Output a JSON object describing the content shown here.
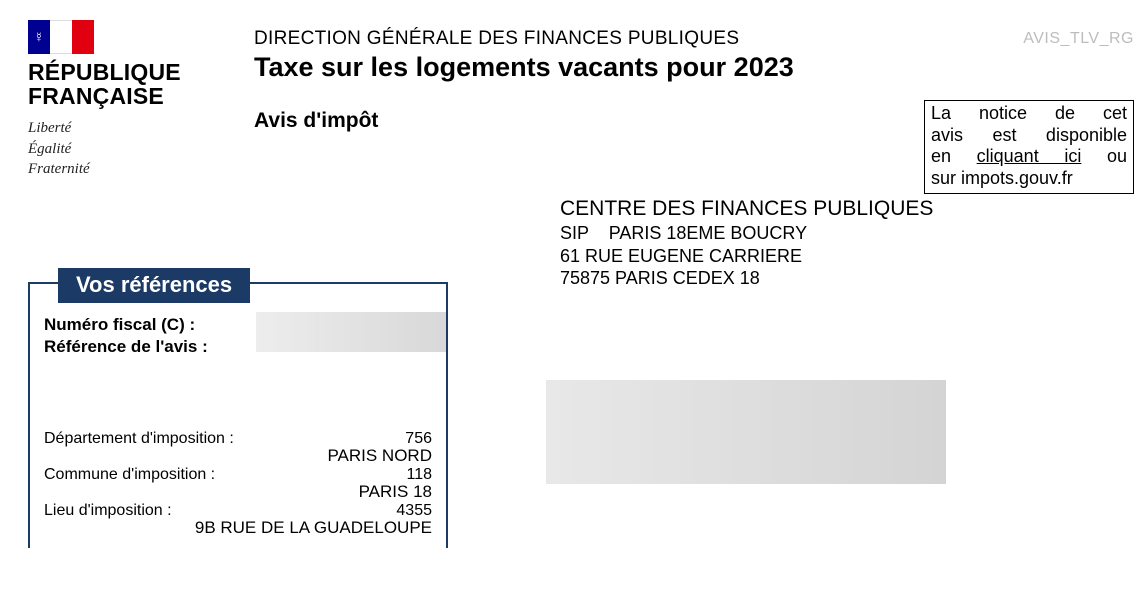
{
  "logo": {
    "republique_line1": "RÉPUBLIQUE",
    "republique_line2": "FRANÇAISE",
    "devise": [
      "Liberté",
      "Égalité",
      "Fraternité"
    ]
  },
  "header": {
    "direction": "DIRECTION GÉNÉRALE DES FINANCES PUBLIQUES",
    "title": "Taxe sur les logements vacants pour 2023",
    "subtitle": "Avis d'impôt",
    "doc_code": "AVIS_TLV_RG"
  },
  "notice": {
    "line1": "La notice de cet",
    "line2": "avis est disponible",
    "line3_prefix": "en ",
    "line3_link": "cliquant ici",
    "line3_suffix": " ou",
    "line4": "sur impots.gouv.fr"
  },
  "centre": {
    "name": "CENTRE DES FINANCES PUBLIQUES",
    "sip": "SIP    PARIS 18EME BOUCRY",
    "addr1": "61 RUE EUGENE CARRIERE",
    "addr2": "75875 PARIS CEDEX 18"
  },
  "references": {
    "box_title": "Vos références",
    "fiscal_label": "Numéro fiscal (C) :",
    "avis_label": "Référence de l'avis :",
    "dept_label": "Département d'imposition :",
    "dept_code": "756",
    "dept_name": "PARIS NORD",
    "commune_label": "Commune d'imposition :",
    "commune_code": "118",
    "commune_name": "PARIS 18",
    "lieu_label": "Lieu d'imposition :",
    "lieu_code": "4355",
    "lieu_addr": "9B RUE DE LA GUADELOUPE"
  },
  "colors": {
    "brand_navy": "#1b3a66",
    "flag_blue": "#000091",
    "flag_red": "#e1000f",
    "doc_code_gray": "#bdbdbd",
    "mask_gray_light": "#e8e8e8",
    "mask_gray_dark": "#d4d4d4"
  }
}
